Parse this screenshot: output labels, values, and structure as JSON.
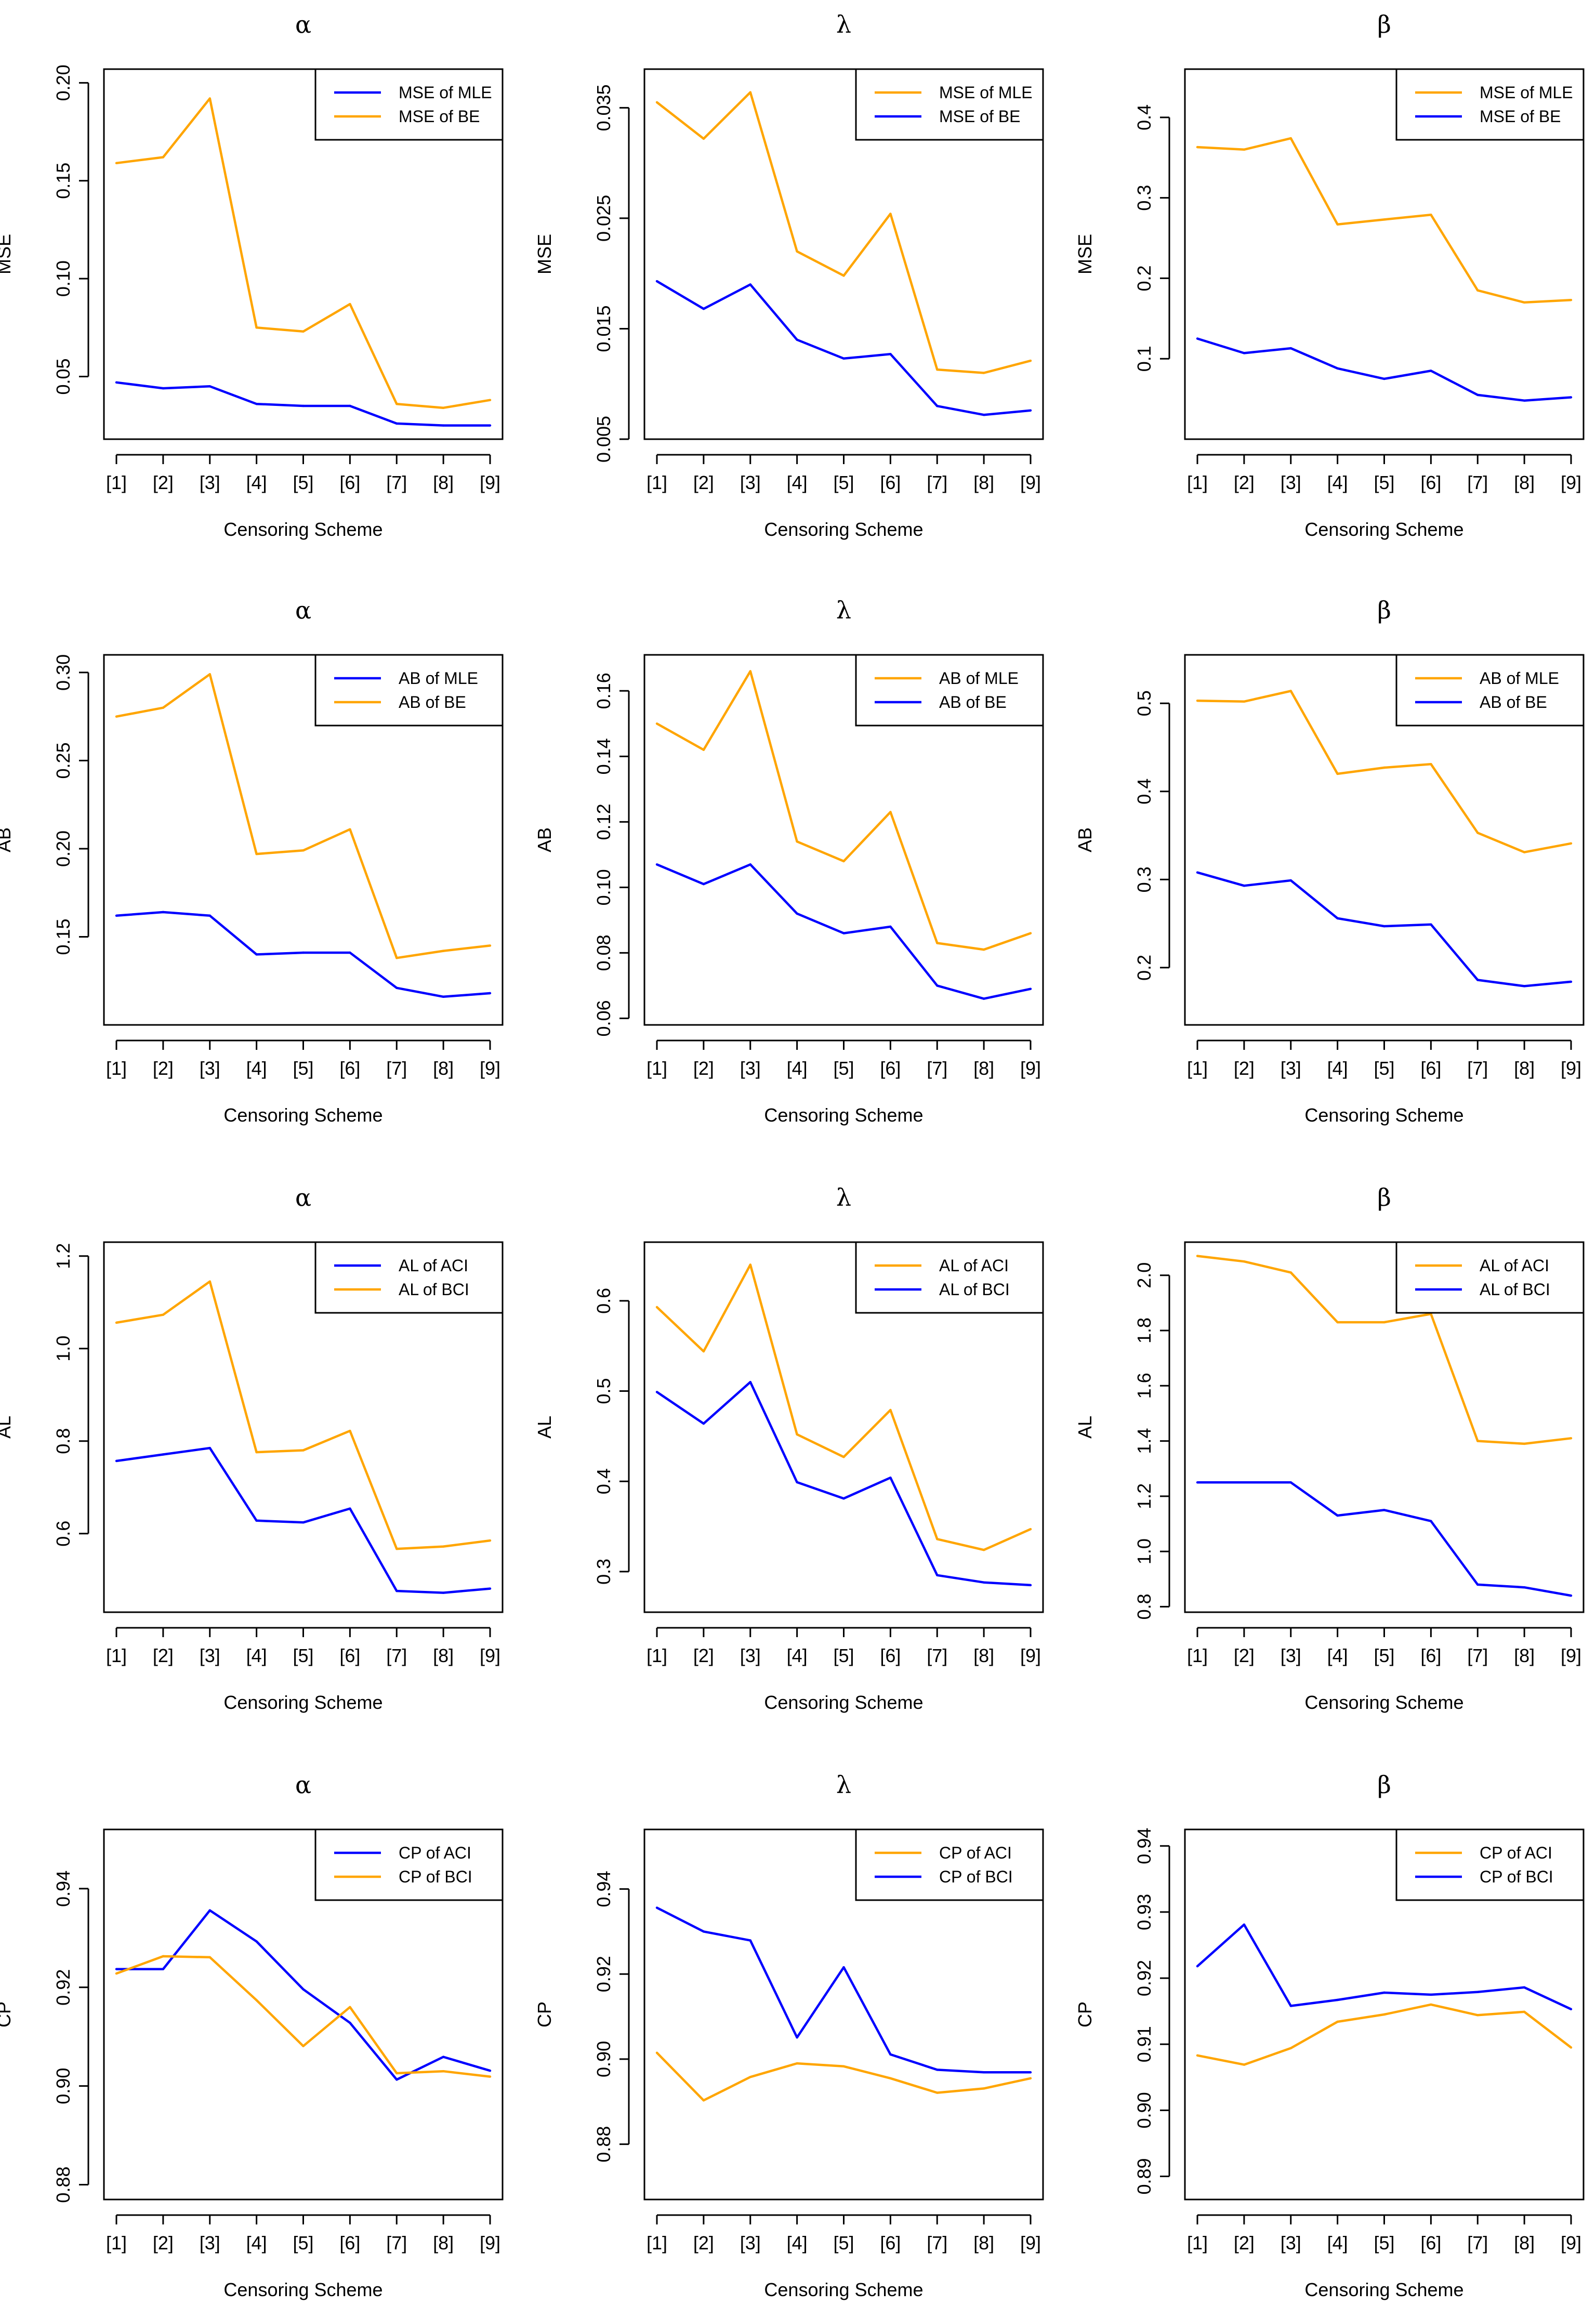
{
  "x_axis": {
    "label": "Censoring Scheme",
    "tick_labels": [
      "[1]",
      "[2]",
      "[3]",
      "[4]",
      "[5]",
      "[6]",
      "[7]",
      "[8]",
      "[9]"
    ]
  },
  "colors": {
    "blue": "#0000ff",
    "orange": "#ffa500"
  },
  "chart_data": [
    {
      "type": "line",
      "title": "α",
      "ylabel": "MSE",
      "ylim": [
        0.018,
        0.207
      ],
      "yticks": [
        0.05,
        0.1,
        0.15,
        0.2
      ],
      "ytick_labels": [
        "0.05",
        "0.10",
        "0.15",
        "0.20"
      ],
      "legend_placement": "top-right",
      "series": [
        {
          "name": "MSE of MLE",
          "color": "#0000ff",
          "values": [
            0.047,
            0.044,
            0.045,
            0.036,
            0.035,
            0.035,
            0.026,
            0.025,
            0.025
          ]
        },
        {
          "name": "MSE of BE",
          "color": "#ffa500",
          "values": [
            0.159,
            0.162,
            0.192,
            0.075,
            0.073,
            0.087,
            0.036,
            0.034,
            0.038
          ]
        }
      ]
    },
    {
      "type": "line",
      "title": "λ",
      "ylabel": "MSE",
      "ylim": [
        0.005,
        0.0385
      ],
      "yticks": [
        0.005,
        0.015,
        0.025,
        0.035
      ],
      "ytick_labels": [
        "0.005",
        "0.015",
        "0.025",
        "0.035"
      ],
      "legend_placement": "top-right",
      "series": [
        {
          "name": "MSE of MLE",
          "color": "#ffa500",
          "values": [
            0.0355,
            0.0322,
            0.0364,
            0.022,
            0.0198,
            0.0254,
            0.0113,
            0.011,
            0.0121
          ]
        },
        {
          "name": "MSE of BE",
          "color": "#0000ff",
          "values": [
            0.0193,
            0.0168,
            0.019,
            0.014,
            0.0123,
            0.0127,
            0.008,
            0.0072,
            0.0076
          ]
        }
      ]
    },
    {
      "type": "line",
      "title": "β",
      "ylabel": "MSE",
      "ylim": [
        0.0,
        0.46
      ],
      "yticks": [
        0.1,
        0.2,
        0.3,
        0.4
      ],
      "ytick_labels": [
        "0.1",
        "0.2",
        "0.3",
        "0.4"
      ],
      "legend_placement": "top-right",
      "series": [
        {
          "name": "MSE of MLE",
          "color": "#ffa500",
          "values": [
            0.363,
            0.36,
            0.374,
            0.267,
            0.273,
            0.279,
            0.185,
            0.17,
            0.173
          ]
        },
        {
          "name": "MSE of BE",
          "color": "#0000ff",
          "values": [
            0.125,
            0.107,
            0.113,
            0.088,
            0.075,
            0.085,
            0.055,
            0.048,
            0.052
          ]
        }
      ]
    },
    {
      "type": "line",
      "title": "α",
      "ylabel": "AB",
      "ylim": [
        0.1,
        0.31
      ],
      "yticks": [
        0.15,
        0.2,
        0.25,
        0.3
      ],
      "ytick_labels": [
        "0.15",
        "0.20",
        "0.25",
        "0.30"
      ],
      "legend_placement": "top-right",
      "series": [
        {
          "name": "AB of MLE",
          "color": "#0000ff",
          "values": [
            0.162,
            0.164,
            0.162,
            0.14,
            0.141,
            0.141,
            0.121,
            0.116,
            0.118
          ]
        },
        {
          "name": "AB of BE",
          "color": "#ffa500",
          "values": [
            0.275,
            0.28,
            0.299,
            0.197,
            0.199,
            0.211,
            0.138,
            0.142,
            0.145
          ]
        }
      ]
    },
    {
      "type": "line",
      "title": "λ",
      "ylabel": "AB",
      "ylim": [
        0.058,
        0.171
      ],
      "yticks": [
        0.06,
        0.08,
        0.1,
        0.12,
        0.14,
        0.16
      ],
      "ytick_labels": [
        "0.06",
        "0.08",
        "0.10",
        "0.12",
        "0.14",
        "0.16"
      ],
      "legend_placement": "top-right",
      "series": [
        {
          "name": "AB of MLE",
          "color": "#ffa500",
          "values": [
            0.15,
            0.142,
            0.166,
            0.114,
            0.108,
            0.123,
            0.083,
            0.081,
            0.086
          ]
        },
        {
          "name": "AB of BE",
          "color": "#0000ff",
          "values": [
            0.107,
            0.101,
            0.107,
            0.092,
            0.086,
            0.088,
            0.07,
            0.066,
            0.069
          ]
        }
      ]
    },
    {
      "type": "line",
      "title": "β",
      "ylabel": "AB",
      "ylim": [
        0.135,
        0.555
      ],
      "yticks": [
        0.2,
        0.3,
        0.4,
        0.5
      ],
      "ytick_labels": [
        "0.2",
        "0.3",
        "0.4",
        "0.5"
      ],
      "legend_placement": "top-right",
      "series": [
        {
          "name": "AB of MLE",
          "color": "#ffa500",
          "values": [
            0.503,
            0.502,
            0.514,
            0.42,
            0.427,
            0.431,
            0.353,
            0.331,
            0.341
          ]
        },
        {
          "name": "AB of BE",
          "color": "#0000ff",
          "values": [
            0.308,
            0.293,
            0.299,
            0.256,
            0.247,
            0.249,
            0.186,
            0.179,
            0.184
          ]
        }
      ]
    },
    {
      "type": "line",
      "title": "α",
      "ylabel": "AL",
      "ylim": [
        0.43,
        1.23
      ],
      "yticks": [
        0.6,
        0.8,
        1.0,
        1.2
      ],
      "ytick_labels": [
        "0.6",
        "0.8",
        "1.0",
        "1.2"
      ],
      "legend_placement": "top-right",
      "series": [
        {
          "name": "AL of ACI",
          "color": "#0000ff",
          "values": [
            0.757,
            0.771,
            0.785,
            0.628,
            0.624,
            0.654,
            0.476,
            0.472,
            0.481
          ]
        },
        {
          "name": "AL of BCI",
          "color": "#ffa500",
          "values": [
            1.056,
            1.073,
            1.145,
            0.776,
            0.78,
            0.822,
            0.567,
            0.572,
            0.585
          ]
        }
      ]
    },
    {
      "type": "line",
      "title": "λ",
      "ylabel": "AL",
      "ylim": [
        0.255,
        0.665
      ],
      "yticks": [
        0.3,
        0.4,
        0.5,
        0.6
      ],
      "ytick_labels": [
        "0.3",
        "0.4",
        "0.5",
        "0.6"
      ],
      "legend_placement": "top-right",
      "series": [
        {
          "name": "AL of ACI",
          "color": "#ffa500",
          "values": [
            0.593,
            0.544,
            0.64,
            0.452,
            0.427,
            0.479,
            0.336,
            0.324,
            0.347
          ]
        },
        {
          "name": "AL of BCI",
          "color": "#0000ff",
          "values": [
            0.499,
            0.464,
            0.51,
            0.399,
            0.381,
            0.404,
            0.296,
            0.288,
            0.285
          ]
        }
      ]
    },
    {
      "type": "line",
      "title": "β",
      "ylabel": "AL",
      "ylim": [
        0.78,
        2.12
      ],
      "yticks": [
        0.8,
        1.0,
        1.2,
        1.4,
        1.6,
        1.8,
        2.0
      ],
      "ytick_labels": [
        "0.8",
        "1.0",
        "1.2",
        "1.4",
        "1.6",
        "1.8",
        "2.0"
      ],
      "legend_placement": "top-right",
      "series": [
        {
          "name": "AL of ACI",
          "color": "#ffa500",
          "values": [
            2.07,
            2.05,
            2.01,
            1.83,
            1.83,
            1.86,
            1.4,
            1.39,
            1.41
          ]
        },
        {
          "name": "AL of BCI",
          "color": "#0000ff",
          "values": [
            1.25,
            1.25,
            1.25,
            1.13,
            1.15,
            1.11,
            0.88,
            0.87,
            0.84
          ]
        }
      ]
    },
    {
      "type": "line",
      "title": "α",
      "ylabel": "CP",
      "ylim": [
        0.877,
        0.952
      ],
      "yticks": [
        0.88,
        0.9,
        0.92,
        0.94
      ],
      "ytick_labels": [
        "0.88",
        "0.90",
        "0.92",
        "0.94"
      ],
      "legend_placement": "top-right",
      "series": [
        {
          "name": "CP of ACI",
          "color": "#0000ff",
          "values": [
            0.9237,
            0.9237,
            0.9356,
            0.9293,
            0.9196,
            0.9128,
            0.9013,
            0.9059,
            0.9031
          ]
        },
        {
          "name": "CP of BCI",
          "color": "#ffa500",
          "values": [
            0.9228,
            0.9263,
            0.9261,
            0.9174,
            0.9081,
            0.916,
            0.9026,
            0.903,
            0.9019
          ]
        }
      ]
    },
    {
      "type": "line",
      "title": "λ",
      "ylabel": "CP",
      "ylim": [
        0.867,
        0.954
      ],
      "yticks": [
        0.88,
        0.9,
        0.92,
        0.94
      ],
      "ytick_labels": [
        "0.88",
        "0.90",
        "0.92",
        "0.94"
      ],
      "legend_placement": "top-right",
      "series": [
        {
          "name": "CP of ACI",
          "color": "#ffa500",
          "values": [
            0.9015,
            0.8903,
            0.8958,
            0.899,
            0.8983,
            0.8955,
            0.8921,
            0.8931,
            0.8955
          ]
        },
        {
          "name": "CP of BCI",
          "color": "#0000ff",
          "values": [
            0.9356,
            0.93,
            0.9279,
            0.9051,
            0.9216,
            0.9011,
            0.8975,
            0.8969,
            0.8969
          ]
        }
      ]
    },
    {
      "type": "line",
      "title": "β",
      "ylabel": "CP",
      "ylim": [
        0.8865,
        0.9425
      ],
      "yticks": [
        0.89,
        0.9,
        0.91,
        0.92,
        0.93,
        0.94
      ],
      "ytick_labels": [
        "0.89",
        "0.90",
        "0.91",
        "0.92",
        "0.93",
        "0.94"
      ],
      "legend_placement": "top-right",
      "series": [
        {
          "name": "CP of ACI",
          "color": "#ffa500",
          "values": [
            0.9083,
            0.9069,
            0.9094,
            0.9134,
            0.9145,
            0.916,
            0.9144,
            0.9149,
            0.9095
          ]
        },
        {
          "name": "CP of BCI",
          "color": "#0000ff",
          "values": [
            0.9218,
            0.9281,
            0.9158,
            0.9167,
            0.9178,
            0.9175,
            0.9179,
            0.9186,
            0.9153
          ]
        }
      ]
    }
  ]
}
